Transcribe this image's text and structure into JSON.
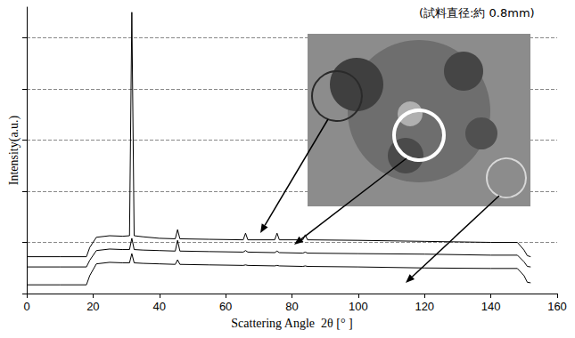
{
  "chart_data": {
    "type": "line",
    "annotation": "(試料直径:約 0.8mm)",
    "x_label": "Scattering Angle  2θ [° ]",
    "y_label": "Intensity(a.u.)",
    "x": [
      0,
      10,
      18,
      19,
      21,
      25,
      29,
      31,
      31.7,
      32.4,
      35,
      40,
      44.8,
      45.5,
      46.2,
      55,
      65.3,
      66,
      66.7,
      74.8,
      75.5,
      76.2,
      83.3,
      84,
      84.7,
      100,
      120,
      140,
      148,
      150,
      151,
      152
    ],
    "series": [
      {
        "color": "#000000",
        "values": [
          0.72,
          0.72,
          0.72,
          0.9,
          1.1,
          1.13,
          1.12,
          1.13,
          5.5,
          1.13,
          1.11,
          1.08,
          1.07,
          1.25,
          1.07,
          1.06,
          1.05,
          1.18,
          1.05,
          1.05,
          1.18,
          1.05,
          1.05,
          1.15,
          1.05,
          1.04,
          1.02,
          1.0,
          1.0,
          0.85,
          0.74,
          0.72
        ]
      },
      {
        "color": "#000000",
        "values": [
          0.52,
          0.52,
          0.52,
          0.65,
          0.84,
          0.87,
          0.86,
          0.86,
          1.08,
          0.86,
          0.85,
          0.84,
          0.83,
          1.04,
          0.83,
          0.82,
          0.81,
          0.84,
          0.81,
          0.8,
          0.83,
          0.8,
          0.79,
          0.81,
          0.79,
          0.78,
          0.77,
          0.75,
          0.75,
          0.62,
          0.53,
          0.52
        ]
      },
      {
        "color": "#000000",
        "values": [
          0.17,
          0.17,
          0.17,
          0.35,
          0.58,
          0.61,
          0.6,
          0.6,
          0.78,
          0.6,
          0.59,
          0.58,
          0.57,
          0.66,
          0.57,
          0.56,
          0.55,
          0.56,
          0.55,
          0.54,
          0.55,
          0.54,
          0.53,
          0.54,
          0.53,
          0.52,
          0.5,
          0.49,
          0.49,
          0.35,
          0.22,
          0.21
        ]
      }
    ],
    "xlim": [
      0,
      160
    ],
    "xticks": [
      0,
      20,
      40,
      60,
      80,
      100,
      120,
      140,
      160
    ],
    "ylim": [
      0,
      5.6
    ],
    "yticks": [
      0,
      1,
      2,
      3,
      4,
      5
    ],
    "grid": true,
    "tick_labels": "x"
  }
}
